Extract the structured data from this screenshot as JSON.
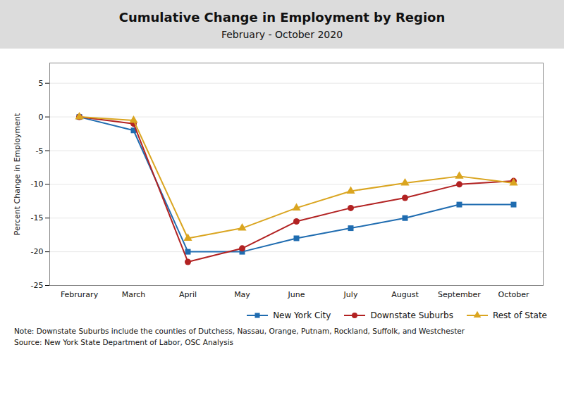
{
  "chart_data": {
    "type": "line",
    "title": "Cumulative Change in Employment by Region",
    "subtitle": "February - October 2020",
    "ylabel": "Percent Change in Employment",
    "categories": [
      "Februrary",
      "March",
      "April",
      "May",
      "June",
      "July",
      "August",
      "September",
      "October"
    ],
    "series": [
      {
        "name": "New York City",
        "color": "#1F6CB0",
        "marker": "square",
        "values": [
          0,
          -2.0,
          -20.0,
          -20.0,
          -18.0,
          -16.5,
          -15.0,
          -13.0,
          -13.0
        ]
      },
      {
        "name": "Downstate Suburbs",
        "color": "#B22222",
        "marker": "circle",
        "values": [
          0,
          -1.0,
          -21.5,
          -19.5,
          -15.5,
          -13.5,
          -12.0,
          -10.0,
          -9.5
        ]
      },
      {
        "name": "Rest of State",
        "color": "#DAA520",
        "marker": "triangle",
        "values": [
          0,
          -0.5,
          -18.0,
          -16.5,
          -13.5,
          -11.0,
          -9.8,
          -8.8,
          -9.8
        ]
      }
    ],
    "ylim": [
      -25,
      8
    ],
    "yticks": [
      -25,
      -20,
      -15,
      -10,
      -5,
      0,
      5
    ],
    "grid": true,
    "legend": "lower right",
    "annotations": [
      "Note: Downstate Suburbs include the counties of Dutchess, Nassau, Orange, Putnam, Rockland, Suffolk, and Westchester",
      "Source: New York State Department of Labor, OSC Analysis"
    ]
  }
}
